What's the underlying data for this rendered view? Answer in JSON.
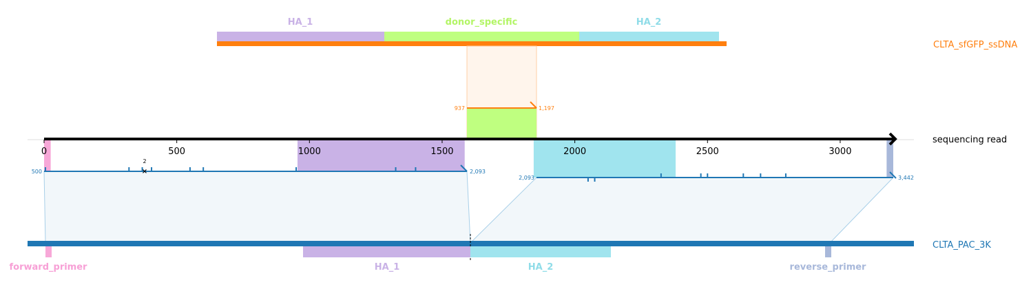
{
  "rows": {
    "donor": {
      "label": "CLTA_sfGFP_ssDNA",
      "color": "#ff7f0e"
    },
    "read": {
      "label": "sequencing read",
      "color": "#000000"
    },
    "ref": {
      "label": "CLTA_PAC_3K",
      "color": "#1f77b4"
    }
  },
  "donor_features": [
    {
      "label": "HA_1",
      "color": "#c9b2e6",
      "text_color": "#c9b2e6"
    },
    {
      "label": "donor_specific",
      "color": "#bfff80",
      "text_color": "#b3f566"
    },
    {
      "label": "HA_2",
      "color": "#a0e4ee",
      "text_color": "#8fdce8"
    }
  ],
  "ref_features": [
    {
      "label": "forward_primer",
      "color": "#f7a8d8",
      "text_color": "#f7a0d6"
    },
    {
      "label": "HA_1",
      "color": "#c9b2e6",
      "text_color": "#c9b2e6"
    },
    {
      "label": "HA_2",
      "color": "#a0e4ee",
      "text_color": "#8fdce8"
    },
    {
      "label": "reverse_primer",
      "color": "#a8b8da",
      "text_color": "#a8b8da"
    }
  ],
  "read_axis": {
    "ticks": [
      0,
      500,
      1000,
      1500,
      2000,
      2500,
      3000
    ],
    "tick_labels": [
      "0",
      "500",
      "1000",
      "1500",
      "2000",
      "2500",
      "3000"
    ],
    "max": 3200
  },
  "alignments": {
    "donor": {
      "start_label": "937",
      "end_label": "1,197",
      "read_start": 1585,
      "read_end": 1845
    },
    "ref1": {
      "start_label": "500",
      "end_label": "2,093",
      "read_start": 0,
      "read_end": 1585
    },
    "ref2": {
      "start_label": "2,093",
      "end_label": "3,442",
      "read_start": 1845,
      "read_end": 3200
    }
  },
  "read_feature_spans": [
    {
      "name": "forward-primer-read-span",
      "color": "#f7a8d8",
      "start": 0,
      "end": 25
    },
    {
      "name": "ha1-read-span",
      "color": "#c9b2e6",
      "start": 955,
      "end": 1585
    },
    {
      "name": "donor-specific-read-span",
      "color": "#bfff80",
      "start": 1585,
      "end": 1845
    },
    {
      "name": "ha2-read-span",
      "color": "#a0e4ee",
      "start": 1845,
      "end": 2380
    },
    {
      "name": "reverse-primer-read-span",
      "color": "#a8b8da",
      "start": 3175,
      "end": 3200
    }
  ],
  "mismatch_marks_1": [
    5,
    320,
    370,
    405,
    550,
    600,
    950,
    1325,
    1400
  ],
  "insertion_mark": {
    "count_label": "2",
    "pos": 375
  },
  "mismatch_marks_2": [
    2050,
    2075,
    2325,
    2475,
    2500,
    2635,
    2700,
    2795
  ]
}
